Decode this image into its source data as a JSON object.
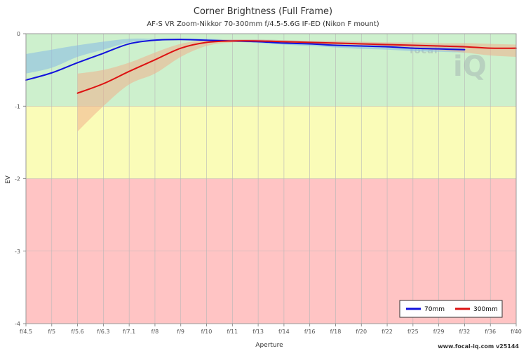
{
  "chart_data": {
    "type": "line",
    "title": "Corner Brightness (Full Frame)",
    "subtitle": "AF-S VR Zoom-Nikkor 70-300mm f/4.5-5.6G IF-ED (Nikon F mount)",
    "xlabel": "Aperture",
    "ylabel": "EV",
    "ylim": [
      -4,
      0
    ],
    "yticks": [
      "0",
      "-1",
      "-2",
      "-3",
      "-4"
    ],
    "x_categories": [
      "f/4.5",
      "f/5",
      "f/5.6",
      "f/6.3",
      "f/7.1",
      "f/8",
      "f/9",
      "f/10",
      "f/11",
      "f/13",
      "f/14",
      "f/16",
      "f/18",
      "f/20",
      "f/22",
      "f/25",
      "f/29",
      "f/32",
      "f/36",
      "f/40"
    ],
    "zones": [
      {
        "from": 0,
        "to": -1,
        "color": "#cdf0cd"
      },
      {
        "from": -1,
        "to": -2,
        "color": "#fafcb8"
      },
      {
        "from": -2,
        "to": -4,
        "color": "#ffc4c4"
      }
    ],
    "series": [
      {
        "name": "70mm",
        "color": "#1111dd",
        "band_color": "#87b9e6",
        "points": [
          {
            "x": 0,
            "y": -0.64,
            "lo": -0.55,
            "hi": -0.28
          },
          {
            "x": 1,
            "y": -0.54,
            "lo": -0.47,
            "hi": -0.22
          },
          {
            "x": 2,
            "y": -0.4,
            "lo": -0.32,
            "hi": -0.16
          },
          {
            "x": 3,
            "y": -0.27,
            "lo": -0.22,
            "hi": -0.11
          },
          {
            "x": 4,
            "y": -0.14,
            "lo": -0.12,
            "hi": -0.07
          },
          {
            "x": 5,
            "y": -0.09,
            "lo": -0.09,
            "hi": -0.07
          },
          {
            "x": 6,
            "y": -0.08,
            "lo": -0.08,
            "hi": -0.07
          },
          {
            "x": 7,
            "y": -0.09,
            "lo": -0.09,
            "hi": -0.07
          },
          {
            "x": 8,
            "y": -0.1,
            "lo": -0.11,
            "hi": -0.08
          },
          {
            "x": 9,
            "y": -0.11,
            "lo": -0.13,
            "hi": -0.08
          },
          {
            "x": 10,
            "y": -0.13,
            "lo": -0.15,
            "hi": -0.09
          },
          {
            "x": 11,
            "y": -0.14,
            "lo": -0.17,
            "hi": -0.1
          },
          {
            "x": 12,
            "y": -0.16,
            "lo": -0.19,
            "hi": -0.11
          },
          {
            "x": 13,
            "y": -0.17,
            "lo": -0.21,
            "hi": -0.12
          },
          {
            "x": 14,
            "y": -0.18,
            "lo": -0.22,
            "hi": -0.13
          },
          {
            "x": 15,
            "y": -0.2,
            "lo": -0.24,
            "hi": -0.14
          },
          {
            "x": 16,
            "y": -0.21,
            "lo": -0.25,
            "hi": -0.15
          },
          {
            "x": 17,
            "y": -0.22,
            "lo": -0.26,
            "hi": -0.16
          }
        ]
      },
      {
        "name": "300mm",
        "color": "#dd1111",
        "band_color": "#f0b08c",
        "points": [
          {
            "x": 2,
            "y": -0.82,
            "lo": -1.35,
            "hi": -0.55
          },
          {
            "x": 3,
            "y": -0.69,
            "lo": -1.0,
            "hi": -0.5
          },
          {
            "x": 4,
            "y": -0.52,
            "lo": -0.7,
            "hi": -0.4
          },
          {
            "x": 5,
            "y": -0.36,
            "lo": -0.55,
            "hi": -0.26
          },
          {
            "x": 6,
            "y": -0.2,
            "lo": -0.32,
            "hi": -0.14
          },
          {
            "x": 7,
            "y": -0.12,
            "lo": -0.17,
            "hi": -0.09
          },
          {
            "x": 8,
            "y": -0.1,
            "lo": -0.12,
            "hi": -0.08
          },
          {
            "x": 9,
            "y": -0.1,
            "lo": -0.11,
            "hi": -0.08
          },
          {
            "x": 10,
            "y": -0.11,
            "lo": -0.13,
            "hi": -0.09
          },
          {
            "x": 11,
            "y": -0.12,
            "lo": -0.14,
            "hi": -0.1
          },
          {
            "x": 12,
            "y": -0.13,
            "lo": -0.16,
            "hi": -0.1
          },
          {
            "x": 13,
            "y": -0.14,
            "lo": -0.17,
            "hi": -0.11
          },
          {
            "x": 14,
            "y": -0.15,
            "lo": -0.19,
            "hi": -0.12
          },
          {
            "x": 15,
            "y": -0.16,
            "lo": -0.21,
            "hi": -0.12
          },
          {
            "x": 16,
            "y": -0.17,
            "lo": -0.23,
            "hi": -0.13
          },
          {
            "x": 17,
            "y": -0.18,
            "lo": -0.26,
            "hi": -0.13
          },
          {
            "x": 18,
            "y": -0.2,
            "lo": -0.3,
            "hi": -0.14
          },
          {
            "x": 19,
            "y": -0.2,
            "lo": -0.32,
            "hi": -0.15
          }
        ]
      }
    ],
    "legend": {
      "position": "bottom-right"
    },
    "grid": true
  },
  "watermark": {
    "text": "focal",
    "letters": "iQ"
  },
  "footer": "www.focal-iq.com  v25144"
}
